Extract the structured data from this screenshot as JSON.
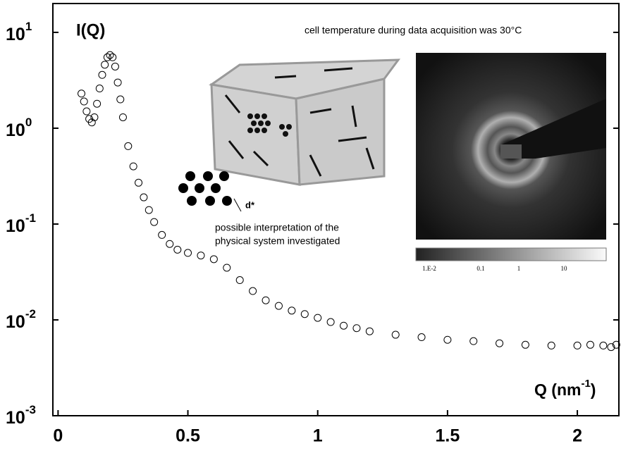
{
  "chart_data": {
    "type": "scatter",
    "log_y": true,
    "grid": false,
    "marker_color": "#000000",
    "y_label": "I(Q)",
    "x_label": {
      "base": "Q (nm",
      "superscript": "-1",
      "end": ")"
    },
    "annotations": [
      "cell temperature during data acquisition was 30°C",
      "possible interpretation of the",
      "physical system investigated",
      "d*"
    ],
    "inset_colorbar_labels": [
      "1.E-2",
      "0.1",
      "1",
      "10"
    ],
    "xlim": [
      -0.02,
      2.16
    ],
    "xticks": [
      0,
      0.5,
      1,
      1.5,
      2
    ],
    "ylim": [
      0.001,
      20
    ],
    "yticks": [
      {
        "value": 10,
        "label": "10",
        "exponent": "1"
      },
      {
        "value": 1,
        "label": "10",
        "exponent": "0"
      },
      {
        "value": 0.1,
        "label": "10",
        "exponent": "-1"
      },
      {
        "value": 0.01,
        "label": "10",
        "exponent": "-2"
      },
      {
        "value": 0.001,
        "label": "10",
        "exponent": "-3"
      }
    ],
    "x": [
      0.09,
      0.1,
      0.11,
      0.12,
      0.13,
      0.14,
      0.15,
      0.16,
      0.17,
      0.18,
      0.19,
      0.2,
      0.21,
      0.22,
      0.23,
      0.24,
      0.25,
      0.27,
      0.29,
      0.31,
      0.33,
      0.35,
      0.37,
      0.4,
      0.43,
      0.46,
      0.5,
      0.55,
      0.6,
      0.65,
      0.7,
      0.75,
      0.8,
      0.85,
      0.9,
      0.95,
      1.0,
      1.05,
      1.1,
      1.15,
      1.2,
      1.3,
      1.4,
      1.5,
      1.6,
      1.7,
      1.8,
      1.9,
      2.0,
      2.05,
      2.1,
      2.13,
      2.15
    ],
    "values": [
      2.3,
      1.9,
      1.5,
      1.25,
      1.15,
      1.3,
      1.8,
      2.6,
      3.6,
      4.6,
      5.5,
      5.8,
      5.5,
      4.4,
      3.0,
      2.0,
      1.3,
      0.65,
      0.4,
      0.27,
      0.19,
      0.14,
      0.105,
      0.077,
      0.062,
      0.054,
      0.05,
      0.047,
      0.043,
      0.035,
      0.026,
      0.02,
      0.016,
      0.014,
      0.0125,
      0.0115,
      0.0105,
      0.0095,
      0.0087,
      0.0082,
      0.0076,
      0.007,
      0.0066,
      0.0062,
      0.006,
      0.0057,
      0.0055,
      0.0054,
      0.0054,
      0.0055,
      0.0054,
      0.0052,
      0.0055
    ]
  }
}
